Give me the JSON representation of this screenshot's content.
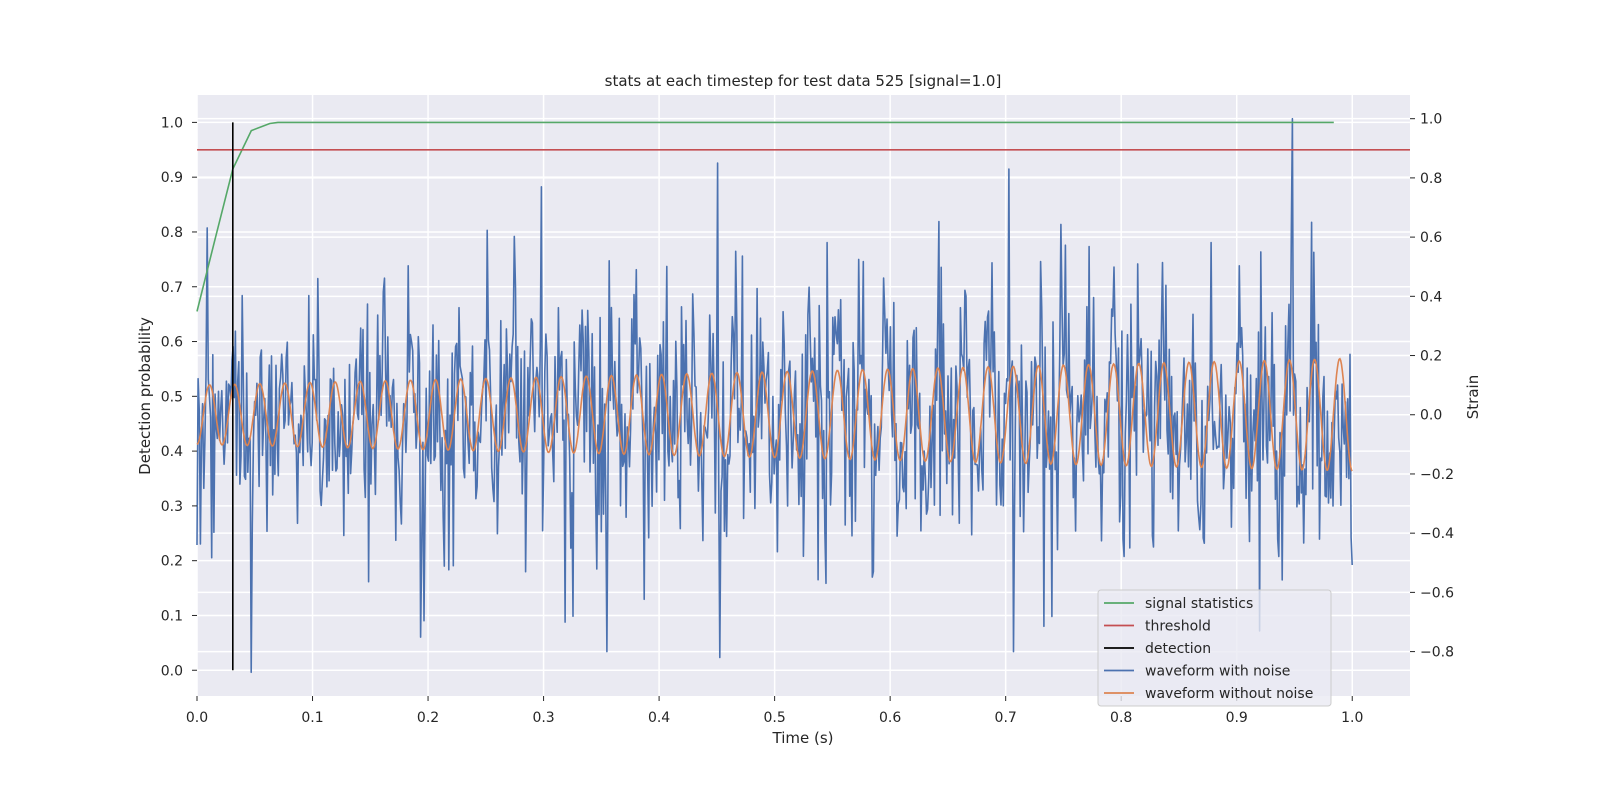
{
  "chart_data": {
    "type": "line",
    "title": "stats at each timestep for test data 525 [signal=1.0]",
    "xlabel": "Time (s)",
    "ylabel_left": "Detection probability",
    "ylabel_right": "Strain",
    "xlim": [
      0.0,
      1.05
    ],
    "ylim_left": [
      -0.047,
      1.05
    ],
    "ylim_right": [
      -0.95,
      1.08
    ],
    "x_ticks": [
      "0.0",
      "0.1",
      "0.2",
      "0.3",
      "0.4",
      "0.5",
      "0.6",
      "0.7",
      "0.8",
      "0.9",
      "1.0"
    ],
    "y_ticks_left": [
      "0.0",
      "0.1",
      "0.2",
      "0.3",
      "0.4",
      "0.5",
      "0.6",
      "0.7",
      "0.8",
      "0.9",
      "1.0"
    ],
    "y_ticks_right": [
      "−0.8",
      "−0.6",
      "−0.4",
      "−0.2",
      "0.0",
      "0.2",
      "0.4",
      "0.6",
      "0.8",
      "1.0"
    ],
    "grid": true,
    "legend_position": "lower-right",
    "legend": [
      {
        "label": "signal statistics",
        "color": "#55a868"
      },
      {
        "label": "threshold",
        "color": "#c44e52"
      },
      {
        "label": "detection",
        "color": "#000000"
      },
      {
        "label": "waveform with noise",
        "color": "#4c72b0"
      },
      {
        "label": "waveform without noise",
        "color": "#dd8452"
      }
    ],
    "series": [
      {
        "name": "signal statistics",
        "axis": "left",
        "color": "#55a868",
        "x": [
          0.0,
          0.016,
          0.031,
          0.047,
          0.063,
          0.07,
          0.1,
          0.3,
          0.5,
          0.7,
          0.9,
          0.984
        ],
        "y": [
          0.655,
          0.79,
          0.915,
          0.985,
          0.998,
          1.0,
          1.0,
          1.0,
          1.0,
          1.0,
          1.0,
          1.0
        ]
      },
      {
        "name": "threshold",
        "axis": "left",
        "color": "#c44e52",
        "x": [
          0.0,
          1.05
        ],
        "y": [
          0.95,
          0.95
        ]
      },
      {
        "name": "detection",
        "axis": "left",
        "color": "#000000",
        "x": [
          0.031,
          0.031
        ],
        "y": [
          0.0,
          1.0
        ]
      },
      {
        "name": "waveform with noise",
        "axis": "right",
        "color": "#4c72b0",
        "x_range": [
          0.0,
          1.0
        ],
        "noise_sigma": 0.2,
        "peaks": [
          {
            "x": 0.0,
            "y": -0.44
          },
          {
            "x": 0.047,
            "y": -0.87
          },
          {
            "x": 0.298,
            "y": 0.77
          },
          {
            "x": 0.355,
            "y": -0.8
          },
          {
            "x": 0.451,
            "y": 0.85
          },
          {
            "x": 0.453,
            "y": -0.82
          },
          {
            "x": 0.703,
            "y": 0.83
          },
          {
            "x": 0.707,
            "y": -0.8
          },
          {
            "x": 0.948,
            "y": 1.0
          },
          {
            "x": 0.92,
            "y": -0.73
          }
        ]
      },
      {
        "name": "waveform without noise",
        "axis": "right",
        "color": "#dd8452",
        "x_range": [
          0.0,
          1.0
        ],
        "cycles": 46,
        "amplitude_start": 0.1,
        "amplitude_end": 0.19
      }
    ]
  }
}
